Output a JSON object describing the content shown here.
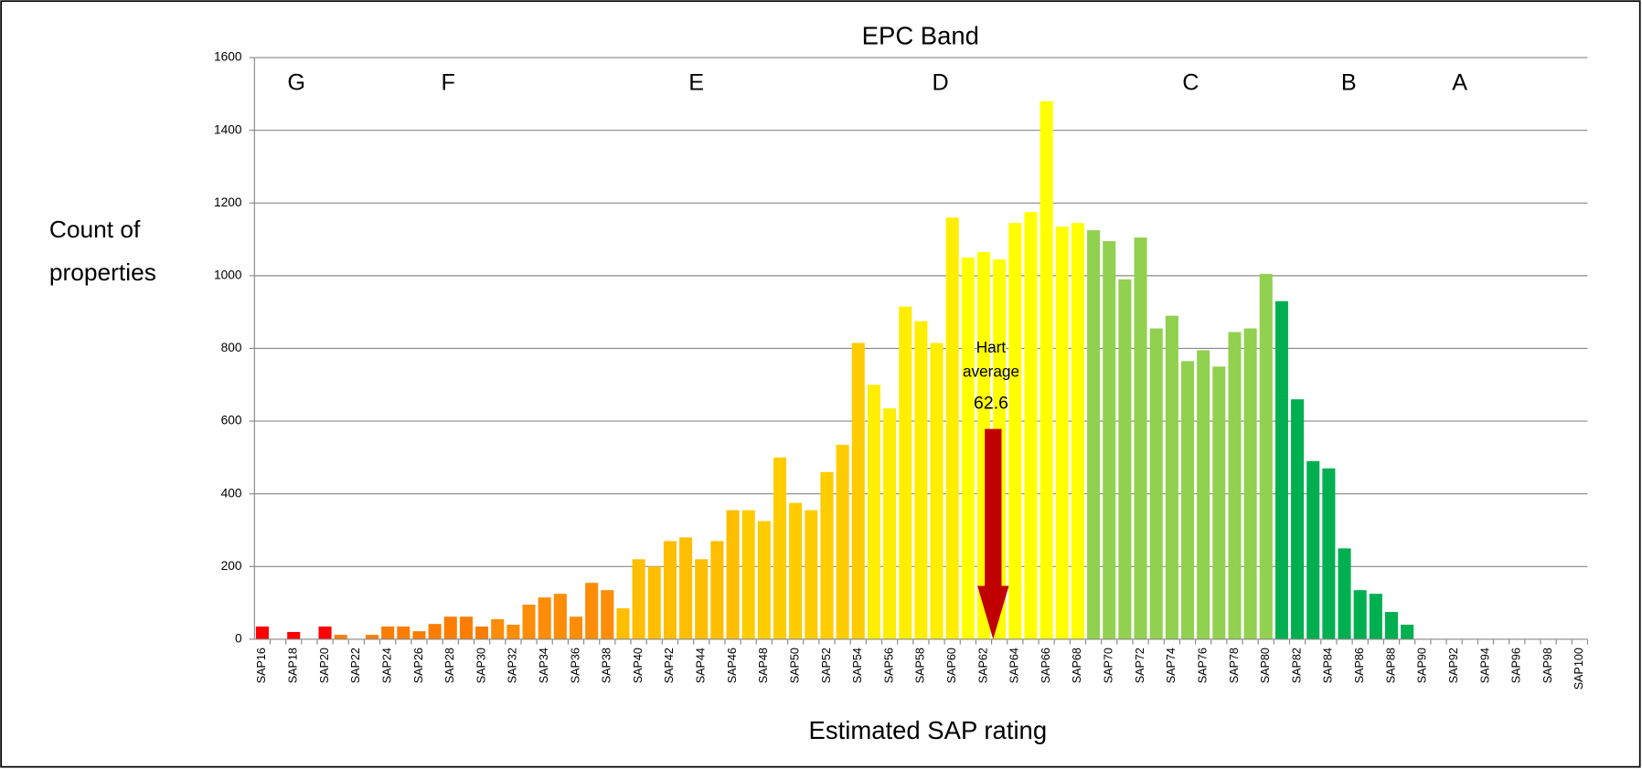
{
  "chart_data": {
    "type": "bar",
    "title": "EPC Band",
    "y_label": [
      "Count of",
      "properties"
    ],
    "x_label": "Estimated SAP rating",
    "bands": [
      "G",
      "F",
      "E",
      "D",
      "C",
      "B",
      "A"
    ],
    "categories": [
      "SAP16",
      null,
      "SAP18",
      null,
      "SAP20",
      null,
      "SAP22",
      null,
      "SAP24",
      null,
      "SAP26",
      null,
      "SAP28",
      null,
      "SAP30",
      null,
      "SAP32",
      null,
      "SAP34",
      null,
      "SAP36",
      null,
      "SAP38",
      null,
      "SAP40",
      null,
      "SAP42",
      null,
      "SAP44",
      null,
      "SAP46",
      null,
      "SAP48",
      null,
      "SAP50",
      null,
      "SAP52",
      null,
      "SAP54",
      null,
      "SAP56",
      null,
      "SAP58",
      null,
      "SAP60",
      null,
      "SAP62",
      null,
      "SAP64",
      null,
      "SAP66",
      null,
      "SAP68",
      null,
      "SAP70",
      null,
      "SAP72",
      null,
      "SAP74",
      null,
      "SAP76",
      null,
      "SAP78",
      null,
      "SAP80",
      null,
      "SAP82",
      null,
      "SAP84",
      null,
      "SAP86",
      null,
      "SAP88",
      null,
      "SAP90",
      null,
      "SAP92",
      null,
      "SAP94",
      null,
      "SAP96",
      null,
      "SAP98",
      null,
      "SAP100"
    ],
    "values": [
      35,
      0,
      20,
      0,
      35,
      12,
      0,
      12,
      35,
      35,
      22,
      42,
      62,
      62,
      35,
      55,
      40,
      95,
      115,
      125,
      62,
      155,
      135,
      85,
      220,
      200,
      270,
      280,
      220,
      270,
      355,
      355,
      325,
      500,
      375,
      355,
      460,
      535,
      815,
      700,
      635,
      915,
      875,
      815,
      1160,
      1050,
      1065,
      1045,
      1145,
      1175,
      1480,
      1135,
      1145,
      1125,
      1095,
      990,
      1105,
      855,
      890,
      765,
      795,
      750,
      845,
      855,
      1005,
      930,
      660,
      490,
      470,
      250,
      135,
      125,
      75,
      40,
      0,
      0,
      0,
      0,
      0,
      0,
      0,
      0,
      0,
      0,
      0
    ],
    "colors": [
      "#ff0000",
      "#ff0000",
      "#ff0000",
      "#ff0000",
      "#ff0000",
      "#fa7d00",
      "#fa7d00",
      "#fa7d00",
      "#fa7d00",
      "#fa7d00",
      "#fa7d00",
      "#fa7d00",
      "#fa7d00",
      "#fa7d00",
      "#fa7d00",
      "#fd8c08",
      "#fd8c08",
      "#fd8c08",
      "#fd8c08",
      "#fd8c08",
      "#fd8c08",
      "#fd8c08",
      "#fd8c08",
      "#ffbe00",
      "#ffbe00",
      "#ffbe00",
      "#ffbe00",
      "#ffbe00",
      "#ffbe00",
      "#ffbe00",
      "#ffbe00",
      "#ffcc00",
      "#ffcc00",
      "#ffcc00",
      "#ffcc00",
      "#ffcc00",
      "#ffcc00",
      "#ffcc00",
      "#ffcc00",
      "#ffee00",
      "#ffee00",
      "#ffee00",
      "#ffee00",
      "#ffee00",
      "#ffee00",
      "#ffff00",
      "#ffff00",
      "#ffff00",
      "#ffff00",
      "#ffff00",
      "#ffff00",
      "#ffff00",
      "#ffff00",
      "#92d050",
      "#92d050",
      "#92d050",
      "#92d050",
      "#92d050",
      "#92d050",
      "#92d050",
      "#92d050",
      "#92d050",
      "#92d050",
      "#92d050",
      "#92d050",
      "#00b050",
      "#00b050",
      "#00b050",
      "#00b050",
      "#00b050",
      "#00b050",
      "#00b050",
      "#00b050",
      "#00b050",
      "#00b050",
      "#00b050",
      "#00a04a",
      "#00a04a",
      "#00a04a",
      "#00a04a",
      "#00a04a",
      "#00a04a",
      "#00a04a",
      "#00a04a",
      "#00a04a"
    ],
    "ylim": [
      0,
      1600
    ],
    "yticks": [
      0,
      200,
      400,
      600,
      800,
      1000,
      1200,
      1400,
      1600
    ],
    "grid": true,
    "average": {
      "label": [
        "Hart",
        "average"
      ],
      "value": 62.6,
      "color": "#c00000"
    }
  }
}
